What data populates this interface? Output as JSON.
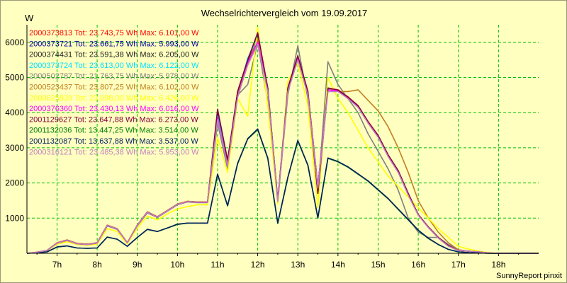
{
  "chart_data": {
    "type": "line",
    "title": "Wechselrichtervergleich vom 19.09.2017",
    "ylabel": "W",
    "footer": "SunnyReport pinxit",
    "ylim": [
      0,
      6500
    ],
    "xlim": [
      6.25,
      19.0
    ],
    "yticks": [
      {
        "value": 1000,
        "label": "1000"
      },
      {
        "value": 2000,
        "label": "2000"
      },
      {
        "value": 3000,
        "label": "3000"
      },
      {
        "value": 4000,
        "label": "4000"
      },
      {
        "value": 5000,
        "label": "5000"
      },
      {
        "value": 6000,
        "label": "6000"
      }
    ],
    "xticks": [
      {
        "value": 7,
        "label": "7h"
      },
      {
        "value": 8,
        "label": "8h"
      },
      {
        "value": 9,
        "label": "9h"
      },
      {
        "value": 10,
        "label": "10h"
      },
      {
        "value": 11,
        "label": "11h"
      },
      {
        "value": 12,
        "label": "12h"
      },
      {
        "value": 13,
        "label": "13h"
      },
      {
        "value": 14,
        "label": "14h"
      },
      {
        "value": 15,
        "label": "15h"
      },
      {
        "value": 16,
        "label": "16h"
      },
      {
        "value": 17,
        "label": "17h"
      },
      {
        "value": 18,
        "label": "18h"
      }
    ],
    "grid": true,
    "legend_position": "top-left",
    "x": [
      6.25,
      6.5,
      6.75,
      7.0,
      7.25,
      7.5,
      7.75,
      8.0,
      8.25,
      8.5,
      8.75,
      9.0,
      9.25,
      9.5,
      9.75,
      10.0,
      10.25,
      10.5,
      10.75,
      11.0,
      11.25,
      11.5,
      11.75,
      12.0,
      12.25,
      12.5,
      12.75,
      13.0,
      13.25,
      13.5,
      13.75,
      14.0,
      14.25,
      14.5,
      14.75,
      15.0,
      15.25,
      15.5,
      15.75,
      16.0,
      16.25,
      16.5,
      16.75,
      17.0,
      17.25,
      17.5,
      17.75,
      18.0,
      18.25,
      18.5,
      18.75,
      19.0
    ],
    "series": [
      {
        "name": "2000373813 Tot: 23.743,75 Wh Max: 6.101,00 W",
        "color": "#ff0000",
        "values": [
          0,
          30,
          80,
          300,
          380,
          280,
          260,
          300,
          800,
          700,
          300,
          800,
          1180,
          1040,
          1220,
          1400,
          1480,
          1460,
          1460,
          4000,
          2600,
          4600,
          5500,
          6100,
          4700,
          1500,
          4700,
          5600,
          4600,
          1900,
          4700,
          4650,
          4450,
          4200,
          3750,
          3350,
          2800,
          2350,
          1700,
          1100,
          750,
          450,
          220,
          80,
          60,
          40,
          10,
          0,
          0,
          0,
          0,
          0
        ]
      },
      {
        "name": "2000373721 Tot: 23.661,75 Wh Max: 5.993,00 W",
        "color": "#0000a0",
        "values": [
          0,
          30,
          80,
          290,
          370,
          270,
          250,
          290,
          780,
          690,
          300,
          790,
          1170,
          1030,
          1210,
          1390,
          1470,
          1450,
          1450,
          3950,
          2550,
          4550,
          5450,
          5990,
          4650,
          1480,
          4650,
          5550,
          4550,
          1880,
          4650,
          4620,
          4420,
          4180,
          3720,
          3330,
          2780,
          2330,
          1690,
          1090,
          740,
          440,
          210,
          80,
          60,
          40,
          10,
          0,
          0,
          0,
          0,
          0
        ]
      },
      {
        "name": "2000374431 Tot: 23.591,38 Wh Max: 6.205,00 W",
        "color": "#202020",
        "values": [
          0,
          30,
          80,
          290,
          370,
          270,
          250,
          290,
          790,
          690,
          300,
          790,
          1170,
          1030,
          1210,
          1390,
          1470,
          1450,
          1450,
          3980,
          2580,
          4580,
          5480,
          6200,
          4680,
          1490,
          4680,
          5580,
          4580,
          1890,
          4680,
          4630,
          4430,
          4190,
          3730,
          3340,
          2790,
          2340,
          1690,
          1090,
          740,
          440,
          210,
          80,
          60,
          40,
          10,
          0,
          0,
          0,
          0,
          0
        ]
      },
      {
        "name": "2000373724 Tot: 23.613,00 Wh Max: 6.122,00 W",
        "color": "#00e0ff",
        "values": [
          0,
          30,
          80,
          290,
          370,
          270,
          250,
          290,
          790,
          690,
          300,
          790,
          1170,
          1030,
          1210,
          1390,
          1470,
          1450,
          1450,
          3900,
          2600,
          4500,
          5550,
          6120,
          4700,
          1490,
          4680,
          5560,
          4560,
          1880,
          4660,
          4620,
          4420,
          4180,
          3720,
          3330,
          2780,
          2330,
          1690,
          1090,
          740,
          440,
          210,
          80,
          60,
          40,
          10,
          0,
          0,
          0,
          0,
          0
        ]
      },
      {
        "name": "2000502787 Tot: 21.763,75 Wh Max: 5.978,00 W",
        "color": "#808080",
        "values": [
          0,
          30,
          80,
          290,
          360,
          270,
          250,
          290,
          780,
          680,
          290,
          780,
          1150,
          1020,
          1200,
          1380,
          1460,
          1440,
          1440,
          3700,
          2400,
          4500,
          4800,
          5978,
          4300,
          1450,
          4500,
          5900,
          4400,
          1700,
          5450,
          4800,
          4400,
          4000,
          3400,
          2900,
          2400,
          1800,
          1000,
          600,
          450,
          450,
          250,
          100,
          60,
          40,
          10,
          0,
          0,
          0,
          0,
          0
        ]
      },
      {
        "name": "2000523437 Tot: 23.807,25 Wh Max: 6.102,00 W",
        "color": "#c08020",
        "values": [
          0,
          30,
          80,
          300,
          380,
          280,
          260,
          300,
          800,
          700,
          300,
          800,
          1180,
          1040,
          1220,
          1400,
          1480,
          1460,
          1460,
          3800,
          2550,
          4500,
          5400,
          6102,
          4600,
          1450,
          4600,
          5600,
          4600,
          1800,
          4700,
          4600,
          4600,
          4650,
          4350,
          4050,
          3600,
          3000,
          2300,
          1500,
          1000,
          600,
          300,
          100,
          60,
          40,
          10,
          0,
          0,
          0,
          0,
          0
        ]
      },
      {
        "name": "2000625839 Tot: 23.098,00 Wh Max: 6.426,00 W",
        "color": "#ffff00",
        "values": [
          0,
          30,
          70,
          260,
          330,
          250,
          230,
          260,
          700,
          620,
          270,
          720,
          1060,
          950,
          1120,
          1260,
          1330,
          1380,
          1380,
          3300,
          2300,
          4400,
          3900,
          6426,
          4200,
          1400,
          4900,
          5400,
          4200,
          1300,
          5000,
          4400,
          4000,
          3500,
          3000,
          2600,
          2200,
          1900,
          1600,
          1300,
          1000,
          700,
          450,
          200,
          120,
          60,
          20,
          0,
          0,
          0,
          0,
          0
        ]
      },
      {
        "name": "2000376360 Tot: 23.430,13 Wh Max: 6.016,00 W",
        "color": "#ff00ff",
        "values": [
          0,
          30,
          80,
          290,
          370,
          270,
          250,
          290,
          790,
          690,
          300,
          790,
          1170,
          1030,
          1210,
          1390,
          1470,
          1450,
          1450,
          3850,
          2500,
          4450,
          5400,
          6016,
          4650,
          1480,
          4650,
          5550,
          4550,
          1880,
          4650,
          4620,
          4420,
          4180,
          3720,
          3330,
          2780,
          2330,
          1690,
          1090,
          740,
          440,
          210,
          80,
          60,
          40,
          10,
          0,
          0,
          0,
          0,
          0
        ]
      },
      {
        "name": "2001129627 Tot: 23.647,88 Wh Max: 6.273,00 W",
        "color": "#800040",
        "values": [
          0,
          30,
          80,
          290,
          370,
          270,
          250,
          290,
          790,
          690,
          300,
          790,
          1170,
          1030,
          1210,
          1390,
          1470,
          1450,
          1450,
          4100,
          2650,
          4600,
          5500,
          6273,
          4700,
          1500,
          4700,
          5620,
          4600,
          1700,
          4700,
          4640,
          4440,
          4200,
          3740,
          3350,
          2800,
          2350,
          1700,
          1100,
          750,
          450,
          220,
          80,
          60,
          40,
          10,
          0,
          0,
          0,
          0,
          0
        ]
      },
      {
        "name": "2001132036 Tot: 13.447,25 Wh Max: 3.514,00 W",
        "color": "#008000",
        "values": [
          0,
          15,
          40,
          180,
          210,
          150,
          140,
          150,
          460,
          400,
          200,
          450,
          680,
          620,
          720,
          820,
          860,
          860,
          860,
          2250,
          1350,
          2550,
          3250,
          3514,
          2700,
          850,
          2150,
          3200,
          2500,
          1000,
          2700,
          2600,
          2450,
          2250,
          2050,
          1800,
          1550,
          1250,
          950,
          650,
          420,
          250,
          110,
          40,
          20,
          10,
          0,
          0,
          0,
          0,
          0,
          0
        ]
      },
      {
        "name": "2001132087 Tot: 13.637,88 Wh Max: 3.537,00 W",
        "color": "#002060",
        "values": [
          0,
          15,
          40,
          180,
          210,
          150,
          140,
          150,
          460,
          400,
          200,
          450,
          680,
          620,
          720,
          830,
          860,
          860,
          860,
          2250,
          1350,
          2560,
          3260,
          3537,
          2710,
          860,
          2160,
          3210,
          2510,
          1010,
          2710,
          2610,
          2460,
          2260,
          2060,
          1810,
          1560,
          1260,
          960,
          660,
          430,
          250,
          110,
          40,
          20,
          10,
          0,
          0,
          0,
          0,
          0,
          0
        ]
      },
      {
        "name": "2000316121 Tot: 23.485,38 Wh Max: 5.953,00 W",
        "color": "#c080c0",
        "values": [
          0,
          30,
          80,
          290,
          370,
          270,
          250,
          290,
          790,
          690,
          300,
          790,
          1170,
          1030,
          1210,
          1390,
          1470,
          1450,
          1450,
          3800,
          2500,
          4450,
          5350,
          5953,
          4600,
          1470,
          4600,
          5500,
          4500,
          1850,
          4600,
          4600,
          4400,
          4150,
          3700,
          3300,
          2750,
          2300,
          1650,
          1080,
          730,
          430,
          200,
          80,
          60,
          40,
          10,
          0,
          0,
          0,
          0,
          0
        ]
      }
    ]
  }
}
